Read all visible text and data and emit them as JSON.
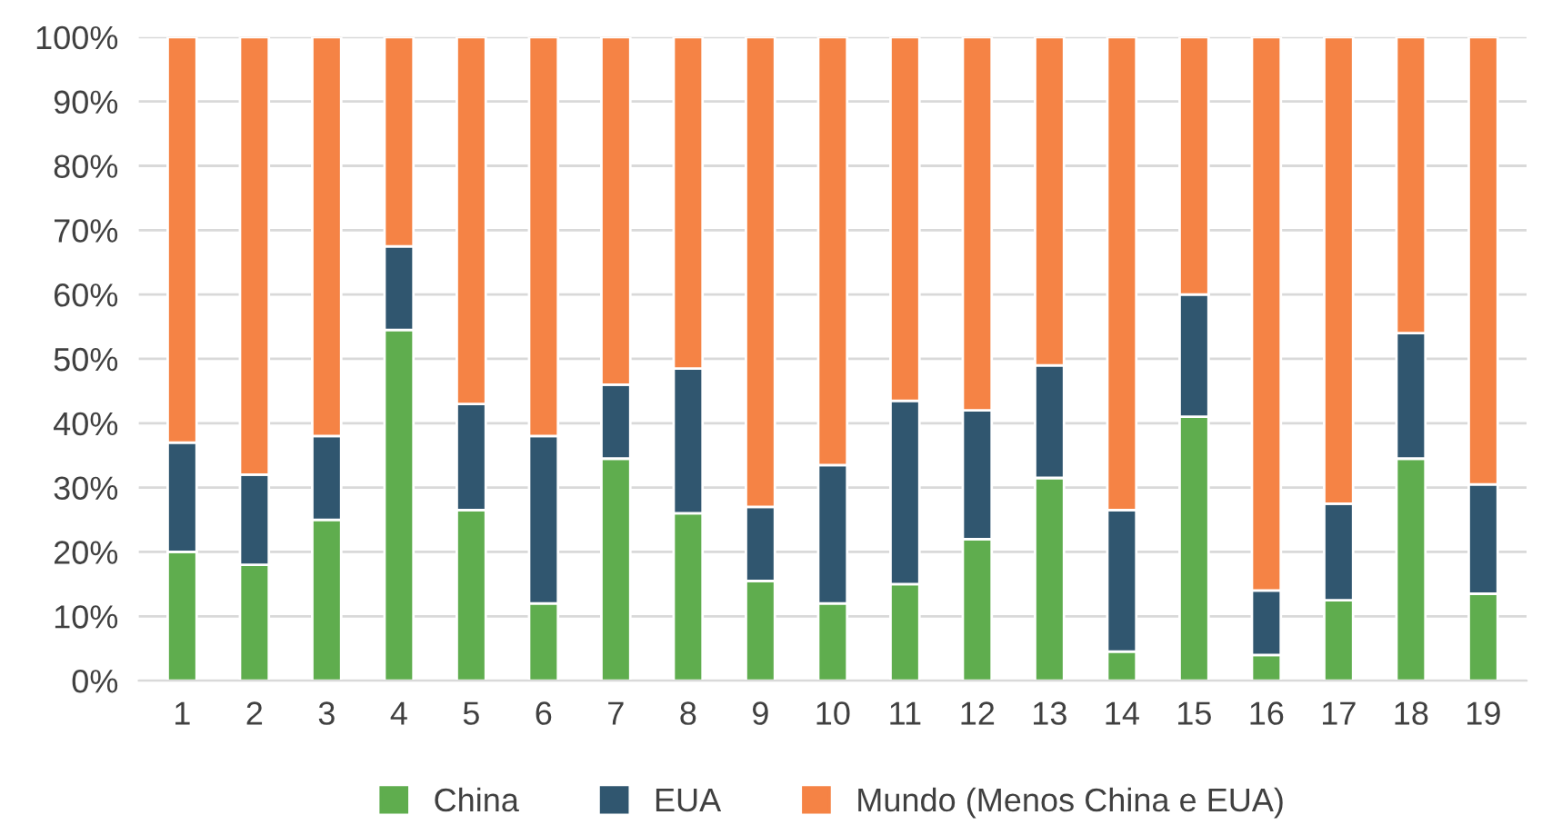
{
  "chart_data": {
    "type": "bar",
    "stacked": true,
    "categories": [
      "1",
      "2",
      "3",
      "4",
      "5",
      "6",
      "7",
      "8",
      "9",
      "10",
      "11",
      "12",
      "13",
      "14",
      "15",
      "16",
      "17",
      "18",
      "19"
    ],
    "series": [
      {
        "name": "China",
        "color": "#5fad4e",
        "values": [
          20,
          18,
          25,
          54.5,
          26.5,
          12,
          34.5,
          26,
          15.5,
          12,
          15,
          22,
          31.5,
          4.5,
          41,
          4,
          12.5,
          34.5,
          13.5
        ]
      },
      {
        "name": "EUA",
        "color": "#30566f",
        "values": [
          17,
          14,
          13,
          13,
          16.5,
          26,
          11.5,
          22.5,
          11.5,
          21.5,
          28.5,
          20,
          17.5,
          22,
          19,
          10,
          15,
          19.5,
          17
        ]
      },
      {
        "name": "Mundo (Menos China e EUA)",
        "color": "#f58345",
        "values": [
          63,
          68,
          62,
          32.5,
          57,
          62,
          54,
          51.5,
          73,
          66.5,
          56.5,
          58,
          51,
          73.5,
          40,
          86,
          72.5,
          46,
          69.5
        ]
      }
    ],
    "ylim": [
      0,
      100
    ],
    "yticks": [
      {
        "value": 0,
        "label": "0%"
      },
      {
        "value": 10,
        "label": "10%"
      },
      {
        "value": 20,
        "label": "20%"
      },
      {
        "value": 30,
        "label": "30%"
      },
      {
        "value": 40,
        "label": "40%"
      },
      {
        "value": 50,
        "label": "50%"
      },
      {
        "value": 60,
        "label": "60%"
      },
      {
        "value": 70,
        "label": "70%"
      },
      {
        "value": 80,
        "label": "80%"
      },
      {
        "value": 90,
        "label": "90%"
      },
      {
        "value": 100,
        "label": "100%"
      }
    ],
    "grid": "y",
    "legend": "bottom"
  }
}
